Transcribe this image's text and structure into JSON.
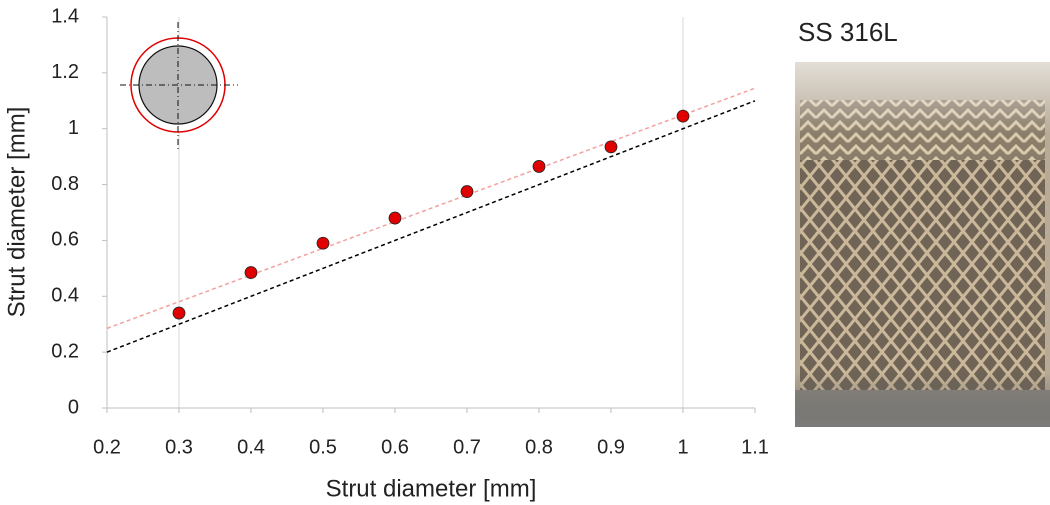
{
  "chart_data": {
    "type": "scatter",
    "x_label": "Strut diameter [mm]",
    "y_label": "Strut diameter [mm]",
    "x": [
      0.3,
      0.4,
      0.5,
      0.6,
      0.7,
      0.8,
      0.9,
      1
    ],
    "values": [
      0.34,
      0.485,
      0.59,
      0.68,
      0.775,
      0.865,
      0.935,
      1.045
    ],
    "color": "#e00000",
    "lines": [
      {
        "x": [
          0.2,
          1.1
        ],
        "values": [
          0.2,
          1.1
        ],
        "color": "#000000"
      },
      {
        "x": [
          0.2,
          1.1
        ],
        "values": [
          0.285,
          1.145
        ],
        "color": "#f2a0a0"
      }
    ],
    "vlines": [
      0.3,
      1
    ],
    "xlim": [
      0.2,
      1.1
    ],
    "xticks": [
      0.2,
      0.3,
      0.4,
      0.5,
      0.6,
      0.7,
      0.8,
      0.9,
      1,
      1.1
    ],
    "ylim": [
      0,
      1.4
    ],
    "yticks": [
      0,
      0.2,
      0.4,
      0.6,
      0.8,
      1,
      1.2,
      1.4
    ],
    "photo_label": "SS 316L"
  }
}
